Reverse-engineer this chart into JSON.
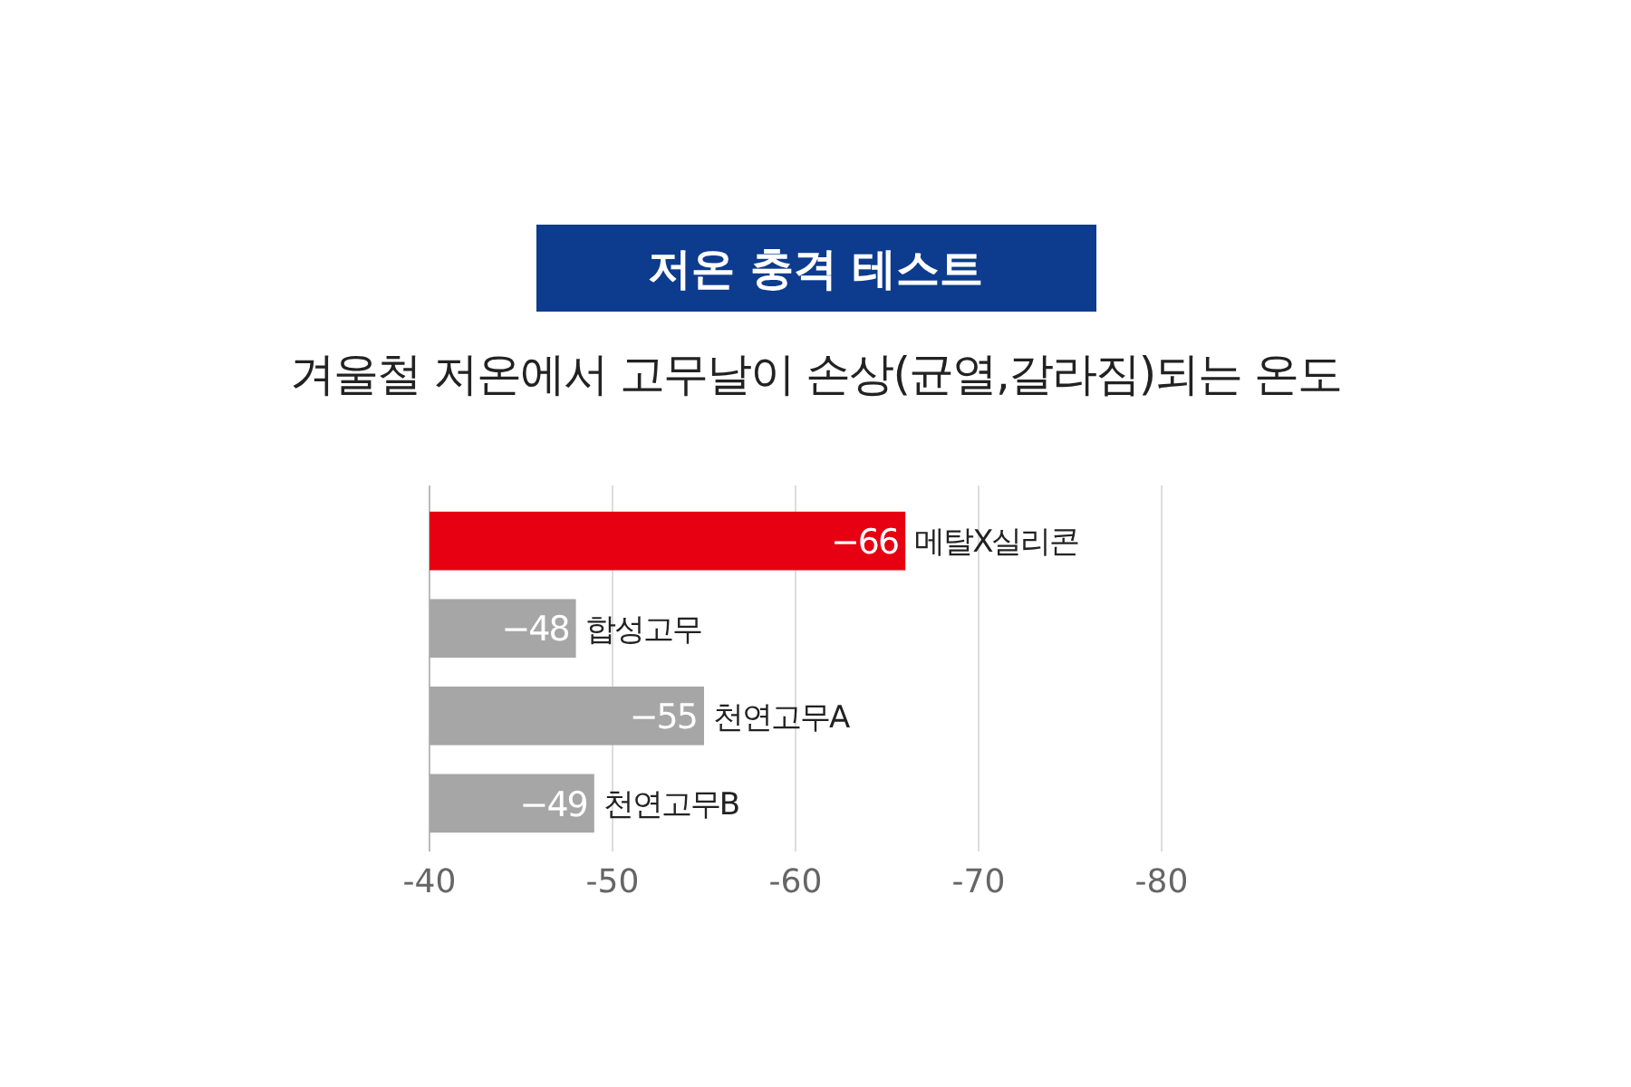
{
  "chart_data": {
    "type": "bar",
    "orientation": "horizontal",
    "title": "저온 충격 테스트",
    "subtitle": "겨울철 저온에서 고무날이 손상(균열,갈라짐)되는 온도",
    "categories": [
      "메탈X실리콘",
      "합성고무",
      "천연고무A",
      "천연고무B"
    ],
    "values": [
      -66,
      -48,
      -55,
      -49
    ],
    "colors": [
      "#e60012",
      "#a6a6a6",
      "#a6a6a6",
      "#a6a6a6"
    ],
    "xlim": [
      -40,
      -80
    ],
    "xticks": [
      -40,
      -50,
      -60,
      -70,
      -80
    ],
    "grid": "x",
    "data_labels": true
  }
}
